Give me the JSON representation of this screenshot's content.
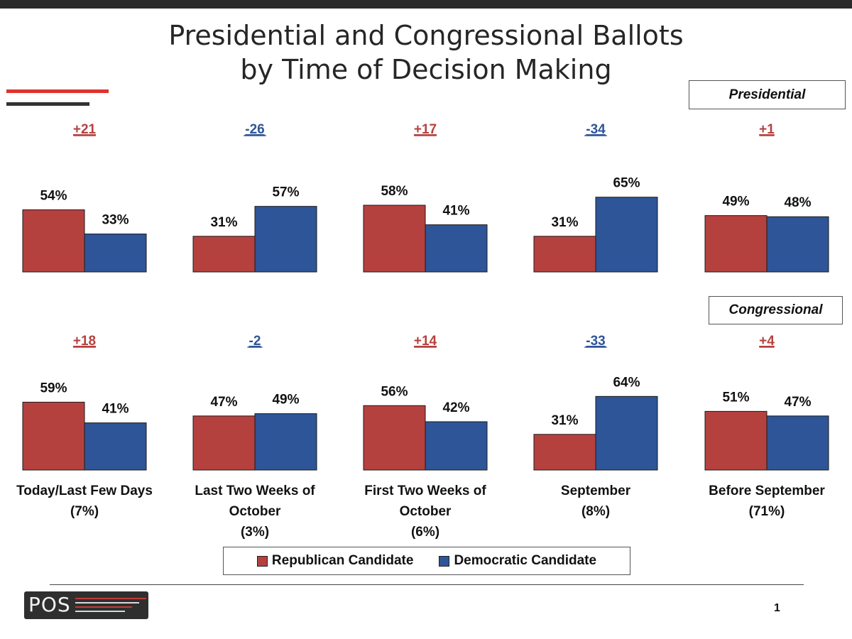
{
  "title": {
    "line1": "Presidential and Congressional Ballots",
    "line2": "by Time of Decision Making"
  },
  "colors": {
    "republican": "#b5413f",
    "democratic": "#2e5597",
    "rep_margin": "#b5413f",
    "dem_margin": "#2e5597"
  },
  "chart_data": {
    "type": "bar",
    "categories": [
      [
        "Today/Last Few Days",
        "(7%)"
      ],
      [
        "Last Two Weeks of",
        "October",
        "(3%)"
      ],
      [
        "First Two Weeks of",
        "October",
        "(6%)"
      ],
      [
        "September",
        "(8%)"
      ],
      [
        "Before September",
        "(71%)"
      ]
    ],
    "panels": [
      {
        "name": "Presidential",
        "margins": [
          "+21",
          "-26",
          "+17",
          "-34",
          "+1"
        ],
        "series": [
          {
            "name": "Republican Candidate",
            "values": [
              54,
              31,
              58,
              31,
              49
            ]
          },
          {
            "name": "Democratic Candidate",
            "values": [
              33,
              57,
              41,
              65,
              48
            ]
          }
        ]
      },
      {
        "name": "Congressional",
        "margins": [
          "+18",
          "-2",
          "+14",
          "-33",
          "+4"
        ],
        "series": [
          {
            "name": "Republican Candidate",
            "values": [
              59,
              47,
              56,
              31,
              51
            ]
          },
          {
            "name": "Democratic Candidate",
            "values": [
              41,
              49,
              42,
              64,
              47
            ]
          }
        ]
      }
    ],
    "value_suffix": "%",
    "legend": [
      "Republican Candidate",
      "Democratic Candidate"
    ],
    "legend_position": "bottom",
    "grid": false
  },
  "footer": {
    "logo_text": "POS",
    "page_number": "1"
  }
}
